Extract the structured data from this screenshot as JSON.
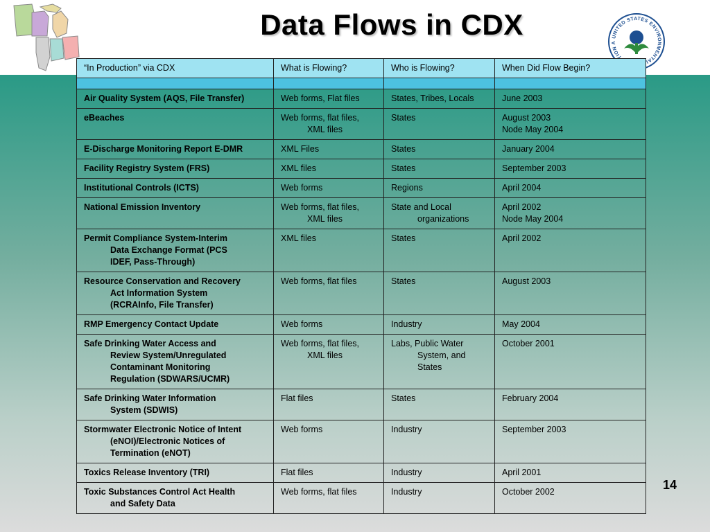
{
  "title": "Data Flows in CDX",
  "page_number": "14",
  "table": {
    "headers": [
      "“In Production” via CDX",
      "What is Flowing?",
      "Who is Flowing?",
      "When Did Flow Begin?"
    ],
    "rows": [
      {
        "system": [
          "Air Quality System (AQS, File Transfer)"
        ],
        "what": [
          "Web forms, Flat files"
        ],
        "who": [
          "States, Tribes, Locals"
        ],
        "when": [
          "June 2003"
        ]
      },
      {
        "system": [
          "eBeaches"
        ],
        "what": [
          "Web forms, flat files,",
          "XML files"
        ],
        "who": [
          "States"
        ],
        "when": [
          "August 2003",
          "Node May 2004"
        ]
      },
      {
        "system": [
          "E-Discharge Monitoring Report E-DMR"
        ],
        "what": [
          "XML Files"
        ],
        "who": [
          "States"
        ],
        "when": [
          "January 2004"
        ]
      },
      {
        "system": [
          "Facility Registry System (FRS)"
        ],
        "what": [
          "XML files"
        ],
        "who": [
          "States"
        ],
        "when": [
          "September 2003"
        ]
      },
      {
        "system": [
          "Institutional Controls (ICTS)"
        ],
        "what": [
          "Web forms"
        ],
        "who": [
          "Regions"
        ],
        "when": [
          "April 2004"
        ]
      },
      {
        "system": [
          "National Emission Inventory"
        ],
        "what": [
          "Web forms, flat files,",
          "XML files"
        ],
        "who": [
          "State and Local",
          "organizations"
        ],
        "when": [
          "April 2002",
          "Node May 2004"
        ]
      },
      {
        "system": [
          "Permit Compliance System-Interim",
          "Data Exchange Format (PCS",
          "IDEF, Pass-Through)"
        ],
        "what": [
          "XML files"
        ],
        "who": [
          "States"
        ],
        "when": [
          "April 2002"
        ]
      },
      {
        "system": [
          "Resource Conservation and Recovery",
          "Act Information System",
          "(RCRAInfo, File Transfer)"
        ],
        "what": [
          "Web forms, flat files"
        ],
        "who": [
          "States"
        ],
        "when": [
          "August 2003"
        ]
      },
      {
        "system": [
          "RMP Emergency Contact Update"
        ],
        "what": [
          "Web forms"
        ],
        "who": [
          "Industry"
        ],
        "when": [
          "May 2004"
        ]
      },
      {
        "system": [
          "Safe Drinking Water Access and",
          "Review System/Unregulated",
          "Contaminant Monitoring",
          "Regulation (SDWARS/UCMR)"
        ],
        "what": [
          "Web forms, flat files,",
          "XML files"
        ],
        "who": [
          "Labs, Public Water",
          "System, and",
          "States"
        ],
        "when": [
          "October 2001"
        ]
      },
      {
        "system": [
          "Safe Drinking Water Information",
          "System (SDWIS)"
        ],
        "what": [
          "Flat files"
        ],
        "who": [
          "States"
        ],
        "when": [
          "February 2004"
        ]
      },
      {
        "system": [
          "Stormwater Electronic Notice of Intent",
          "(eNOI)/Electronic Notices of",
          "Termination (eNOT)"
        ],
        "what": [
          "Web forms"
        ],
        "who": [
          "Industry"
        ],
        "when": [
          "September 2003"
        ]
      },
      {
        "system": [
          "Toxics Release Inventory (TRI)"
        ],
        "what": [
          "Flat files"
        ],
        "who": [
          "Industry"
        ],
        "when": [
          "April 2001"
        ]
      },
      {
        "system": [
          "Toxic Substances Control Act Health",
          "and Safety Data"
        ],
        "what": [
          "Web forms, flat files"
        ],
        "who": [
          "Industry"
        ],
        "when": [
          "October 2002"
        ]
      }
    ]
  },
  "logo": {
    "seal_text": "UNITED STATES ENVIRONMENTAL PROTECTION AGENCY"
  },
  "colors": {
    "header_fill": "#9fe3f2",
    "header_rule": "#4dc2e0",
    "band_top": "#2a9a86",
    "band_bottom": "#dcdcdc"
  }
}
